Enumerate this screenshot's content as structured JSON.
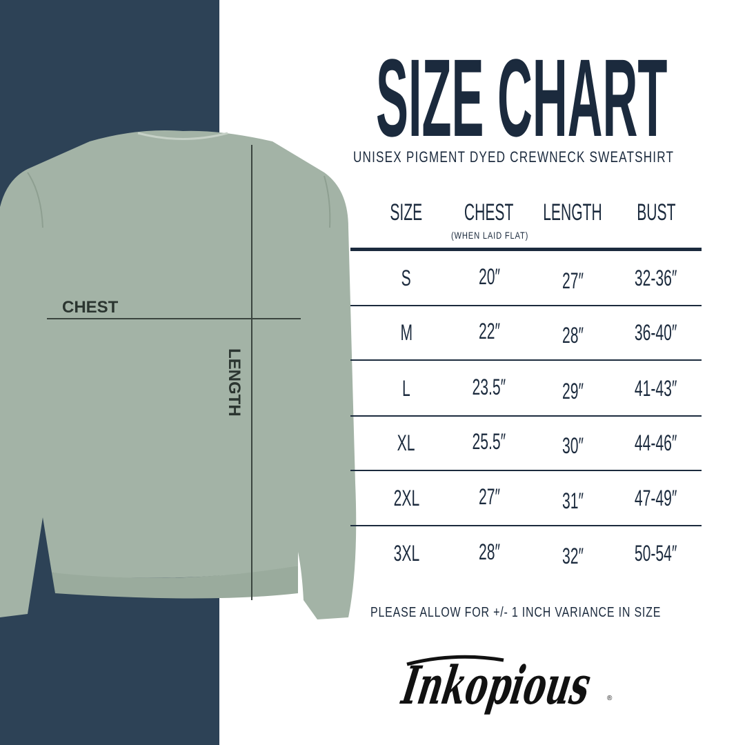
{
  "title": "SIZE CHART",
  "subtitle": "UNISEX PIGMENT DYED CREWNECK SWEATSHIRT",
  "image": {
    "chest_label": "CHEST",
    "length_label": "LENGTH",
    "shirt_color": "#a3b3a6",
    "panel_color": "#2d4256"
  },
  "table": {
    "headers": [
      "SIZE",
      "CHEST",
      "LENGTH",
      "BUST"
    ],
    "chest_note": "(WHEN LAID FLAT)",
    "rows": [
      [
        "S",
        "20″",
        "27″",
        "32-36″"
      ],
      [
        "M",
        "22″",
        "28″",
        "36-40″"
      ],
      [
        "L",
        "23.5″",
        "29″",
        "41-43″"
      ],
      [
        "XL",
        "25.5″",
        "30″",
        "44-46″"
      ],
      [
        "2XL",
        "27″",
        "31″",
        "47-49″"
      ],
      [
        "3XL",
        "28″",
        "32″",
        "50-54″"
      ]
    ]
  },
  "note": "PLEASE ALLOW FOR +/- 1 INCH VARIANCE IN SIZE",
  "brand": "Inkopious"
}
